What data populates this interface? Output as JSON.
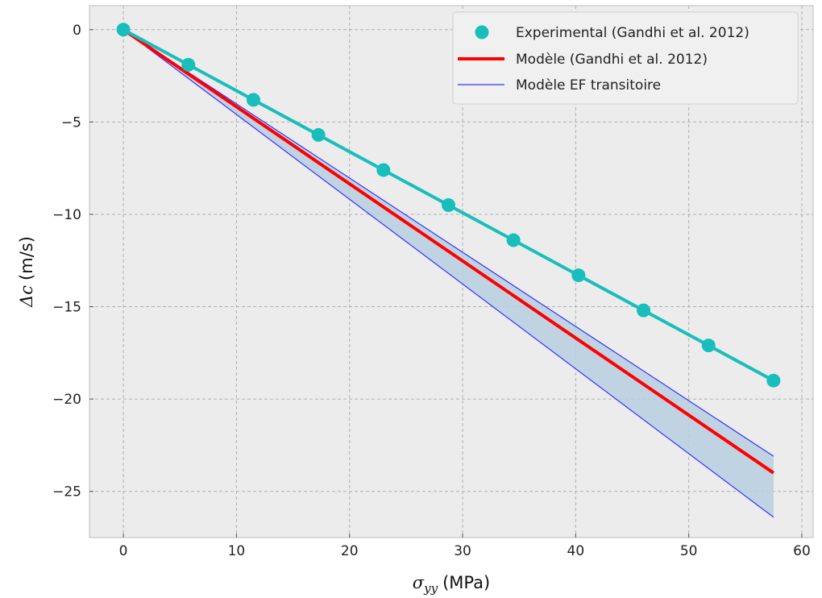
{
  "chart_data": {
    "type": "line",
    "xlabel": "(MPa)",
    "xlabel_symbol": "σ",
    "xlabel_subscript": "yy",
    "ylabel": "(m/s)",
    "ylabel_symbol": "Δc",
    "xlim": [
      -3,
      61
    ],
    "ylim": [
      -27.5,
      1.3
    ],
    "xticks": [
      0,
      10,
      20,
      30,
      40,
      50,
      60
    ],
    "yticks": [
      0,
      -5,
      -10,
      -15,
      -20,
      -25
    ],
    "xtick_labels": [
      "0",
      "10",
      "20",
      "30",
      "40",
      "50",
      "60"
    ],
    "ytick_labels": [
      "0",
      "−5",
      "−10",
      "−15",
      "−20",
      "−25"
    ],
    "grid": true,
    "legend_position": "top-right",
    "series": [
      {
        "name": "Experimental (Gandhi et al. 2012)",
        "kind": "line+markers",
        "color": "#17bebb",
        "x": [
          0,
          5.75,
          11.5,
          17.25,
          23.0,
          28.75,
          34.5,
          40.25,
          46.0,
          51.75,
          57.5
        ],
        "y": [
          0,
          -1.9,
          -3.8,
          -5.7,
          -7.6,
          -9.5,
          -11.4,
          -13.3,
          -15.2,
          -17.1,
          -19.0
        ]
      },
      {
        "name": "Modèle (Gandhi et al. 2012)",
        "kind": "line",
        "color": "#ff0000",
        "x": [
          0,
          57.5
        ],
        "y": [
          0,
          -24.0
        ]
      },
      {
        "name": "Modèle EF transitoire",
        "kind": "band",
        "color": "#3333ff",
        "fill": "#b7cfe1",
        "x": [
          0,
          57.5
        ],
        "y_upper": [
          0,
          -23.1
        ],
        "y_lower": [
          0,
          -26.4
        ]
      }
    ]
  }
}
